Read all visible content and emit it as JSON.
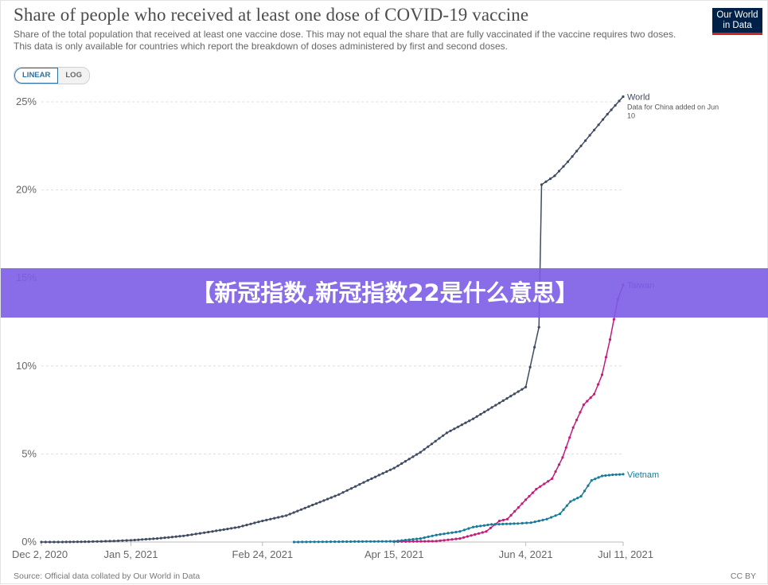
{
  "title": "Share of people who received at least one dose of COVID-19 vaccine",
  "subtitle": "Share of the total population that received at least one vaccine dose. This may not equal the share that are fully vaccinated if the vaccine requires two doses. This data is only available for countries which report the breakdown of doses administered by first and second doses.",
  "logo": {
    "line1": "Our World",
    "line2": "in Data"
  },
  "scale_toggle": {
    "linear": "LINEAR",
    "log": "LOG",
    "active": "LINEAR"
  },
  "banner": "【新冠指数,新冠指数22是什么意思】",
  "footer": {
    "source": "Source: Official data collated by Our World in Data",
    "license": "CC BY"
  },
  "colors": {
    "World": "#3f4b61",
    "Taiwan": "#c31d7c",
    "Vietnam": "#1a7a9a",
    "Taiwan_label": "#7b3fb0",
    "grid": "#dddddd",
    "banner": "#7c5ce6"
  },
  "chart_data": {
    "type": "line",
    "title": "Share of people who received at least one dose of COVID-19 vaccine",
    "x_tick_labels": [
      "Dec 2, 2020",
      "Jan 5, 2021",
      "Feb 24, 2021",
      "Apr 15, 2021",
      "Jun 4, 2021",
      "Jul 11, 2021"
    ],
    "x_tick_dates": [
      "2020-12-02",
      "2021-01-05",
      "2021-02-24",
      "2021-04-15",
      "2021-06-04",
      "2021-07-11"
    ],
    "xlim": [
      "2020-12-02",
      "2021-07-11"
    ],
    "ylim": [
      0,
      25
    ],
    "y_ticks": [
      0,
      5,
      10,
      15,
      20,
      25
    ],
    "y_tick_labels": [
      "0%",
      "5%",
      "10%",
      "15%",
      "20%",
      "25%"
    ],
    "grid": "horizontal dashed",
    "legend": "inline labels at line ends (right)",
    "series": [
      {
        "name": "World",
        "annotation": "Data for China added on Jun 10",
        "points": [
          [
            "2020-12-02",
            0
          ],
          [
            "2020-12-10",
            0
          ],
          [
            "2020-12-20",
            0.02
          ],
          [
            "2020-12-28",
            0.05
          ],
          [
            "2021-01-05",
            0.1
          ],
          [
            "2021-01-15",
            0.2
          ],
          [
            "2021-01-25",
            0.35
          ],
          [
            "2021-02-05",
            0.6
          ],
          [
            "2021-02-15",
            0.85
          ],
          [
            "2021-02-24",
            1.2
          ],
          [
            "2021-03-05",
            1.5
          ],
          [
            "2021-03-15",
            2.1
          ],
          [
            "2021-03-25",
            2.7
          ],
          [
            "2021-04-05",
            3.5
          ],
          [
            "2021-04-15",
            4.2
          ],
          [
            "2021-04-25",
            5.1
          ],
          [
            "2021-05-05",
            6.2
          ],
          [
            "2021-05-15",
            7.0
          ],
          [
            "2021-05-25",
            7.9
          ],
          [
            "2021-06-04",
            8.8
          ],
          [
            "2021-06-09",
            12.2
          ],
          [
            "2021-06-10",
            20.3
          ],
          [
            "2021-06-15",
            20.8
          ],
          [
            "2021-06-20",
            21.6
          ],
          [
            "2021-06-25",
            22.5
          ],
          [
            "2021-06-30",
            23.4
          ],
          [
            "2021-07-05",
            24.3
          ],
          [
            "2021-07-11",
            25.3
          ]
        ]
      },
      {
        "name": "Taiwan",
        "points": [
          [
            "2021-04-15",
            0.02
          ],
          [
            "2021-05-01",
            0.05
          ],
          [
            "2021-05-10",
            0.2
          ],
          [
            "2021-05-20",
            0.6
          ],
          [
            "2021-05-25",
            1.2
          ],
          [
            "2021-05-28",
            1.3
          ],
          [
            "2021-06-04",
            2.4
          ],
          [
            "2021-06-08",
            3.0
          ],
          [
            "2021-06-14",
            3.6
          ],
          [
            "2021-06-18",
            4.8
          ],
          [
            "2021-06-22",
            6.5
          ],
          [
            "2021-06-26",
            7.8
          ],
          [
            "2021-06-30",
            8.4
          ],
          [
            "2021-07-03",
            9.5
          ],
          [
            "2021-07-06",
            11.5
          ],
          [
            "2021-07-09",
            13.8
          ],
          [
            "2021-07-11",
            14.6
          ]
        ]
      },
      {
        "name": "Vietnam",
        "points": [
          [
            "2021-03-08",
            0
          ],
          [
            "2021-03-25",
            0.02
          ],
          [
            "2021-04-15",
            0.04
          ],
          [
            "2021-04-25",
            0.2
          ],
          [
            "2021-05-01",
            0.4
          ],
          [
            "2021-05-10",
            0.6
          ],
          [
            "2021-05-15",
            0.85
          ],
          [
            "2021-05-22",
            1.0
          ],
          [
            "2021-06-01",
            1.05
          ],
          [
            "2021-06-06",
            1.1
          ],
          [
            "2021-06-12",
            1.3
          ],
          [
            "2021-06-17",
            1.6
          ],
          [
            "2021-06-21",
            2.3
          ],
          [
            "2021-06-25",
            2.6
          ],
          [
            "2021-06-29",
            3.5
          ],
          [
            "2021-07-03",
            3.75
          ],
          [
            "2021-07-07",
            3.82
          ],
          [
            "2021-07-11",
            3.85
          ]
        ]
      }
    ]
  }
}
